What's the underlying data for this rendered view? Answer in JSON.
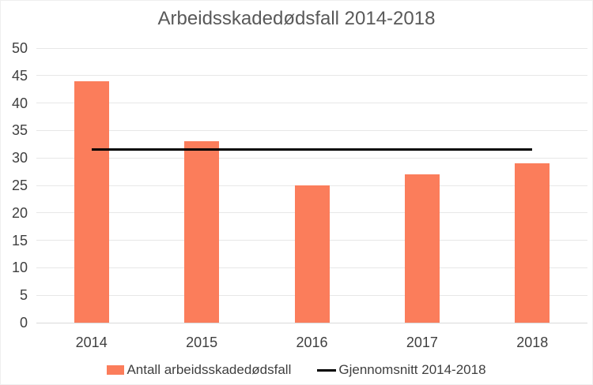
{
  "chart_data": {
    "type": "bar",
    "title": "Arbeidsskadedødsfall 2014-2018",
    "categories": [
      "2014",
      "2015",
      "2016",
      "2017",
      "2018"
    ],
    "series": [
      {
        "name": "Antall arbeidsskadedødsfall",
        "type": "bar",
        "values": [
          44,
          33,
          25,
          27,
          29
        ],
        "color": "#FB7D5B"
      },
      {
        "name": "Gjennomsnitt 2014-2018",
        "type": "line",
        "values": [
          31.6,
          31.6,
          31.6,
          31.6,
          31.6
        ],
        "color": "#000000"
      }
    ],
    "average": 31.6,
    "xlabel": "",
    "ylabel": "",
    "ylim": [
      0,
      50
    ],
    "ytick_step": 5,
    "yticks": [
      0,
      5,
      10,
      15,
      20,
      25,
      30,
      35,
      40,
      45,
      50
    ],
    "grid": true,
    "legend_position": "bottom"
  },
  "colors": {
    "bar": "#FB7D5B",
    "average_line": "#000000",
    "gridline": "#E7E7E7",
    "axis_line": "#D9D9D9",
    "title_text": "#595959",
    "tick_text": "#3F3F3F",
    "background": "#FFFFFF"
  }
}
